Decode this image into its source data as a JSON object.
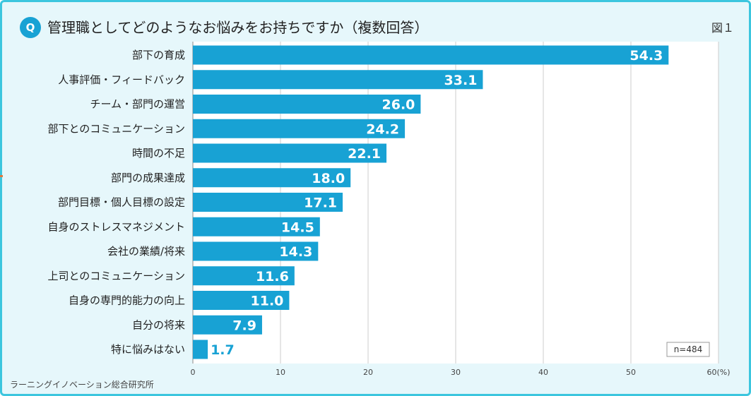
{
  "header": {
    "q_badge": "Q",
    "title": "管理職としてどのようなお悩みをお持ちですか（複数回答）",
    "figure_label": "図１"
  },
  "source": "ラーニングイノベーション総合研究所",
  "sample_note": "n=484",
  "colors": {
    "bar": "#18a2d4",
    "frame": "#3cc6de",
    "panel": "#e6f7fb",
    "grid": "#cccccc"
  },
  "chart_data": {
    "type": "bar",
    "orientation": "horizontal",
    "categories": [
      "部下の育成",
      "人事評価・フィードバック",
      "チーム・部門の運営",
      "部下とのコミュニケーション",
      "時間の不足",
      "部門の成果達成",
      "部門目標・個人目標の設定",
      "自身のストレスマネジメント",
      "会社の業績/将来",
      "上司とのコミュニケーション",
      "自身の専門的能力の向上",
      "自分の将来",
      "特に悩みはない"
    ],
    "values": [
      54.3,
      33.1,
      26.0,
      24.2,
      22.1,
      18.0,
      17.1,
      14.5,
      14.3,
      11.6,
      11.0,
      7.9,
      1.7
    ],
    "value_labels": [
      "54.3",
      "33.1",
      "26.0",
      "24.2",
      "22.1",
      "18.0",
      "17.1",
      "14.5",
      "14.3",
      "11.6",
      "11.0",
      "7.9",
      "1.7"
    ],
    "x_ticks": [
      "0",
      "10",
      "20",
      "30",
      "40",
      "50",
      "60(%)"
    ],
    "xlim": [
      0,
      60
    ],
    "grid": true
  }
}
